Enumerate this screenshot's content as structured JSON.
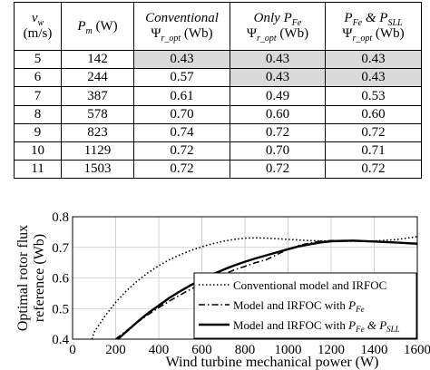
{
  "table": {
    "headers": {
      "vw_symbol": "v",
      "vw_sub": "w",
      "vw_unit": "(m/s)",
      "pm_symbol": "P",
      "pm_sub": "m",
      "pm_unit": " (W)",
      "conv_title": "Conventional",
      "psi_symbol": "Ψ",
      "psi_sub": "r_opt",
      "psi_unit": " (Wb)",
      "only_prefix": "Only ",
      "pfe_symbol": "P",
      "pfe_sub": "Fe",
      "amp": " & ",
      "psll_symbol": "P",
      "psll_sub": "SLL"
    },
    "rows": [
      {
        "vw": "5",
        "pm": "142",
        "conv": "0.43",
        "onlyfe": "0.43",
        "fesll": "0.43"
      },
      {
        "vw": "6",
        "pm": "244",
        "conv": "0.57",
        "onlyfe": "0.43",
        "fesll": "0.43"
      },
      {
        "vw": "7",
        "pm": "387",
        "conv": "0.61",
        "onlyfe": "0.49",
        "fesll": "0.53"
      },
      {
        "vw": "8",
        "pm": "578",
        "conv": "0.70",
        "onlyfe": "0.60",
        "fesll": "0.60"
      },
      {
        "vw": "9",
        "pm": "823",
        "conv": "0.74",
        "onlyfe": "0.72",
        "fesll": "0.72"
      },
      {
        "vw": "10",
        "pm": "1129",
        "conv": "0.72",
        "onlyfe": "0.70",
        "fesll": "0.71"
      },
      {
        "vw": "11",
        "pm": "1503",
        "conv": "0.72",
        "onlyfe": "0.72",
        "fesll": "0.72"
      }
    ],
    "shade_color": "#dadada"
  },
  "chart_data": {
    "type": "line",
    "xlabel": "Wind turbine  mechanical power (W)",
    "ylabel_line1": "Optimal rotor flux",
    "ylabel_line2": "reference (Wb)",
    "xlim": [
      0,
      1600
    ],
    "ylim": [
      0.4,
      0.8
    ],
    "xticks": [
      "0",
      "200",
      "400",
      "600",
      "800",
      "1000",
      "1200",
      "1400",
      "1600"
    ],
    "yticks": [
      "0.4",
      "0.5",
      "0.6",
      "0.7",
      "0.8"
    ],
    "grid": true,
    "legend_position": "center-right",
    "legend": {
      "conv": "Conventional model and IRFOC",
      "fe_prefix": "Model and IRFOC with ",
      "fe_symbol": "P",
      "fe_sub": "Fe",
      "fesll_prefix": "Model and IRFOC with ",
      "fesll_amp": " & ",
      "fesll_symbol": "P",
      "fesll_sub": "SLL"
    },
    "series": [
      {
        "key": "conv",
        "dash": "dotted",
        "x": [
          90,
          100,
          150,
          200,
          250,
          300,
          350,
          400,
          450,
          500,
          550,
          600,
          650,
          700,
          750,
          800,
          850,
          900,
          1000,
          1100,
          1200,
          1300,
          1400,
          1500,
          1600
        ],
        "y": [
          0.4,
          0.423,
          0.475,
          0.52,
          0.558,
          0.59,
          0.617,
          0.64,
          0.66,
          0.676,
          0.69,
          0.702,
          0.712,
          0.72,
          0.726,
          0.73,
          0.731,
          0.73,
          0.726,
          0.722,
          0.72,
          0.72,
          0.721,
          0.725,
          0.735
        ]
      },
      {
        "key": "fe",
        "dash": "dashdot",
        "x": [
          200,
          250,
          300,
          350,
          400,
          450,
          500,
          550,
          600,
          650,
          700,
          750,
          800,
          850,
          900,
          950,
          1000,
          1050,
          1100,
          1150,
          1200,
          1300,
          1400,
          1500,
          1600
        ],
        "y": [
          0.4,
          0.428,
          0.455,
          0.48,
          0.503,
          0.525,
          0.545,
          0.564,
          0.581,
          0.597,
          0.612,
          0.626,
          0.638,
          0.65,
          0.66,
          0.677,
          0.694,
          0.706,
          0.714,
          0.72,
          0.722,
          0.721,
          0.719,
          0.716,
          0.71
        ]
      },
      {
        "key": "fesll",
        "dash": "solid",
        "x": [
          210,
          250,
          300,
          350,
          400,
          450,
          500,
          550,
          600,
          650,
          700,
          750,
          800,
          850,
          900,
          950,
          1000,
          1050,
          1100,
          1150,
          1200,
          1300,
          1400,
          1500,
          1600
        ],
        "y": [
          0.4,
          0.425,
          0.456,
          0.485,
          0.51,
          0.535,
          0.557,
          0.577,
          0.595,
          0.612,
          0.627,
          0.641,
          0.653,
          0.664,
          0.674,
          0.684,
          0.694,
          0.703,
          0.71,
          0.716,
          0.72,
          0.722,
          0.719,
          0.716,
          0.712
        ]
      }
    ]
  }
}
